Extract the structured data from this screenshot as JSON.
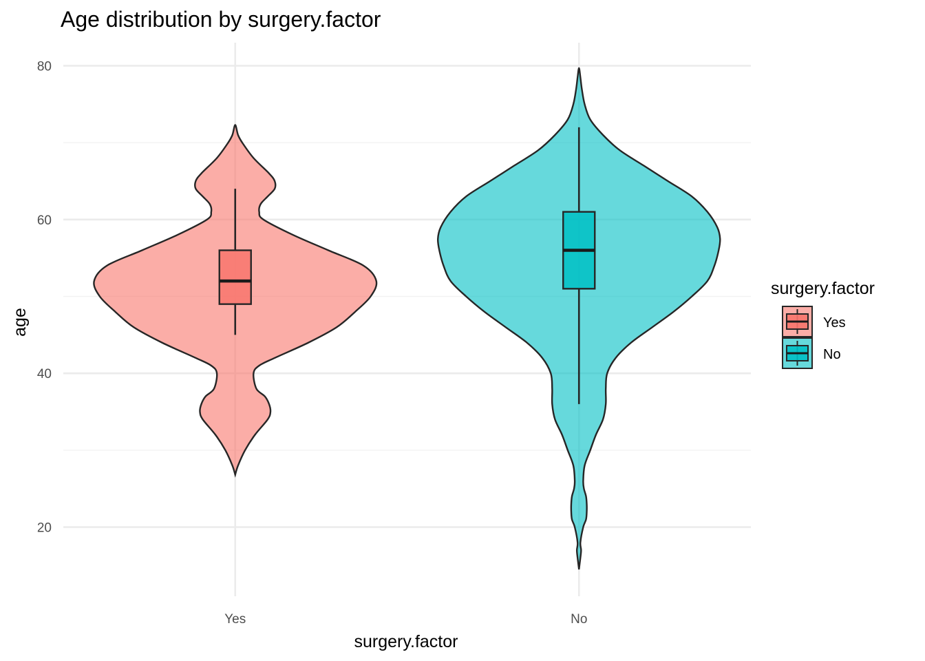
{
  "chart_data": {
    "type": "violin",
    "title": "Age distribution by surgery.factor",
    "xlabel": "surgery.factor",
    "ylabel": "age",
    "ylim": [
      11,
      83
    ],
    "y_ticks": [
      20,
      40,
      60,
      80
    ],
    "y_minor_ticks": [
      30,
      50,
      70
    ],
    "grid": true,
    "categories": [
      "Yes",
      "No"
    ],
    "legend": {
      "title": "surgery.factor",
      "placement": "right",
      "entries": [
        {
          "label": "Yes",
          "color": "#F8766D"
        },
        {
          "label": "No",
          "color": "#00BFC4"
        }
      ]
    },
    "series": [
      {
        "category": "Yes",
        "color": "#F8766D",
        "violin_min": 26.8,
        "violin_max": 72.3,
        "density_profile": [
          [
            26.8,
            0.0
          ],
          [
            28,
            0.02
          ],
          [
            30,
            0.07
          ],
          [
            32,
            0.14
          ],
          [
            34,
            0.23
          ],
          [
            35,
            0.25
          ],
          [
            36,
            0.24
          ],
          [
            37,
            0.21
          ],
          [
            38,
            0.15
          ],
          [
            40,
            0.13
          ],
          [
            41,
            0.17
          ],
          [
            42,
            0.28
          ],
          [
            44,
            0.52
          ],
          [
            46,
            0.72
          ],
          [
            48,
            0.85
          ],
          [
            50,
            0.96
          ],
          [
            52,
            1.0
          ],
          [
            54,
            0.91
          ],
          [
            56,
            0.66
          ],
          [
            58,
            0.41
          ],
          [
            60,
            0.2
          ],
          [
            61,
            0.17
          ],
          [
            62,
            0.18
          ],
          [
            63,
            0.23
          ],
          [
            64,
            0.28
          ],
          [
            65,
            0.28
          ],
          [
            66,
            0.24
          ],
          [
            68,
            0.13
          ],
          [
            70,
            0.05
          ],
          [
            71,
            0.02
          ],
          [
            72.3,
            0.0
          ]
        ],
        "box": {
          "whisker_low": 45,
          "q1": 49,
          "median": 52,
          "q3": 56,
          "whisker_high": 64
        }
      },
      {
        "category": "No",
        "color": "#00BFC4",
        "violin_min": 14.5,
        "violin_max": 79.7,
        "density_profile": [
          [
            14.5,
            0.0
          ],
          [
            16,
            0.01
          ],
          [
            17,
            0.015
          ],
          [
            18,
            0.01
          ],
          [
            20,
            0.03
          ],
          [
            21,
            0.05
          ],
          [
            22,
            0.055
          ],
          [
            23,
            0.055
          ],
          [
            24,
            0.05
          ],
          [
            25,
            0.035
          ],
          [
            26,
            0.03
          ],
          [
            28,
            0.04
          ],
          [
            30,
            0.08
          ],
          [
            32,
            0.12
          ],
          [
            34,
            0.17
          ],
          [
            36,
            0.19
          ],
          [
            38,
            0.19
          ],
          [
            40,
            0.2
          ],
          [
            42,
            0.26
          ],
          [
            44,
            0.37
          ],
          [
            46,
            0.52
          ],
          [
            48,
            0.67
          ],
          [
            50,
            0.8
          ],
          [
            52,
            0.91
          ],
          [
            54,
            0.96
          ],
          [
            56,
            0.99
          ],
          [
            57.5,
            1.0
          ],
          [
            59,
            0.98
          ],
          [
            61,
            0.91
          ],
          [
            63,
            0.8
          ],
          [
            65,
            0.63
          ],
          [
            67,
            0.46
          ],
          [
            69,
            0.29
          ],
          [
            71,
            0.17
          ],
          [
            73,
            0.08
          ],
          [
            75,
            0.04
          ],
          [
            77,
            0.02
          ],
          [
            78.5,
            0.01
          ],
          [
            79.7,
            0.0
          ]
        ],
        "box": {
          "whisker_low": 36,
          "q1": 51,
          "median": 56,
          "q3": 61,
          "whisker_high": 72
        }
      }
    ]
  }
}
